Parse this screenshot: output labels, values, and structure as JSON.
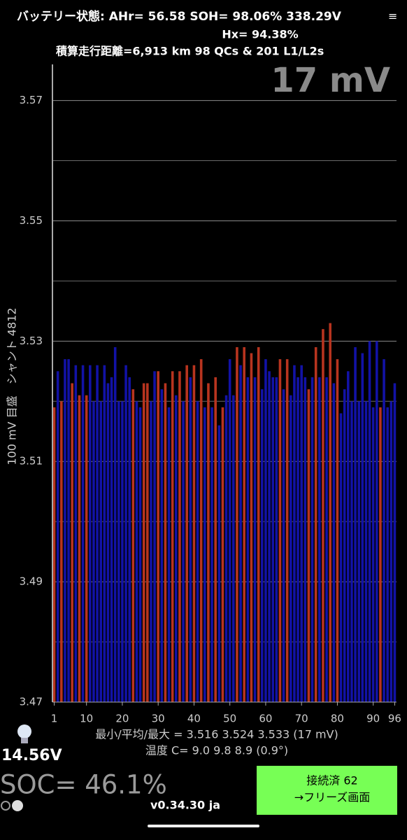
{
  "header": {
    "line1": "バッテリー状態:  AHr= 56.58  SOH= 98.06%   338.29V",
    "line2": "Hx= 94.38%",
    "line3": "積算走行距離=6,913 km  98 QCs & 201 L1/L2s"
  },
  "delta": "17 mV",
  "chart_data": {
    "type": "bar",
    "y_label": "100 mV 目盛　シャント 4812",
    "x": [
      1,
      2,
      3,
      4,
      5,
      6,
      7,
      8,
      9,
      10,
      11,
      12,
      13,
      14,
      15,
      16,
      17,
      18,
      19,
      20,
      21,
      22,
      23,
      24,
      25,
      26,
      27,
      28,
      29,
      30,
      31,
      32,
      33,
      34,
      35,
      36,
      37,
      38,
      39,
      40,
      41,
      42,
      43,
      44,
      45,
      46,
      47,
      48,
      49,
      50,
      51,
      52,
      53,
      54,
      55,
      56,
      57,
      58,
      59,
      60,
      61,
      62,
      63,
      64,
      65,
      66,
      67,
      68,
      69,
      70,
      71,
      72,
      73,
      74,
      75,
      76,
      77,
      78,
      79,
      80,
      81,
      82,
      83,
      84,
      85,
      86,
      87,
      88,
      89,
      90,
      91,
      92,
      93,
      94,
      95,
      96
    ],
    "values": [
      3.519,
      3.525,
      3.52,
      3.527,
      3.527,
      3.523,
      3.526,
      3.521,
      3.526,
      3.521,
      3.526,
      3.52,
      3.526,
      3.52,
      3.526,
      3.523,
      3.524,
      3.529,
      3.52,
      3.52,
      3.526,
      3.524,
      3.522,
      3.52,
      3.519,
      3.523,
      3.523,
      3.52,
      3.525,
      3.525,
      3.522,
      3.523,
      3.519,
      3.525,
      3.521,
      3.525,
      3.52,
      3.526,
      3.524,
      3.526,
      3.52,
      3.527,
      3.519,
      3.523,
      3.519,
      3.524,
      3.516,
      3.519,
      3.521,
      3.527,
      3.521,
      3.529,
      3.526,
      3.529,
      3.524,
      3.528,
      3.524,
      3.529,
      3.522,
      3.527,
      3.525,
      3.524,
      3.524,
      3.527,
      3.522,
      3.527,
      3.521,
      3.526,
      3.524,
      3.526,
      3.524,
      3.522,
      3.524,
      3.529,
      3.524,
      3.532,
      3.524,
      3.533,
      3.523,
      3.527,
      3.518,
      3.522,
      3.525,
      3.52,
      3.529,
      3.52,
      3.528,
      3.52,
      3.53,
      3.519,
      3.53,
      3.519,
      3.527,
      3.519,
      3.52,
      3.523
    ],
    "colors": [
      "#b8341f",
      "#1212a6",
      "#b8341f",
      "#1212a6",
      "#1212a6",
      "#b8341f",
      "#1212a6",
      "#b8341f",
      "#1212a6",
      "#b8341f",
      "#1212a6",
      "#1212a6",
      "#1212a6",
      "#1212a6",
      "#1212a6",
      "#1212a6",
      "#1212a6",
      "#1212a6",
      "#1212a6",
      "#1212a6",
      "#1212a6",
      "#1212a6",
      "#b8341f",
      "#1212a6",
      "#1212a6",
      "#b8341f",
      "#b8341f",
      "#1212a6",
      "#1212a6",
      "#b8341f",
      "#1212a6",
      "#b8341f",
      "#1212a6",
      "#b8341f",
      "#1212a6",
      "#b8341f",
      "#1212a6",
      "#b8341f",
      "#1212a6",
      "#b8341f",
      "#1212a6",
      "#b8341f",
      "#1212a6",
      "#b8341f",
      "#1212a6",
      "#b8341f",
      "#1212a6",
      "#b8341f",
      "#1212a6",
      "#1212a6",
      "#1212a6",
      "#b8341f",
      "#1212a6",
      "#b8341f",
      "#1212a6",
      "#b8341f",
      "#1212a6",
      "#b8341f",
      "#1212a6",
      "#1212a6",
      "#1212a6",
      "#1212a6",
      "#1212a6",
      "#b8341f",
      "#1212a6",
      "#b8341f",
      "#1212a6",
      "#1212a6",
      "#1212a6",
      "#1212a6",
      "#1212a6",
      "#b8341f",
      "#1212a6",
      "#b8341f",
      "#1212a6",
      "#b8341f",
      "#1212a6",
      "#b8341f",
      "#1212a6",
      "#b8341f",
      "#1212a6",
      "#1212a6",
      "#1212a6",
      "#1212a6",
      "#1212a6",
      "#1212a6",
      "#1212a6",
      "#1212a6",
      "#1212a6",
      "#1212a6",
      "#1212a6",
      "#b8341f",
      "#1212a6",
      "#1212a6",
      "#1212a6",
      "#1212a6"
    ],
    "xlim": [
      0.5,
      96.5
    ],
    "xticks": [
      1,
      10,
      20,
      30,
      40,
      50,
      60,
      70,
      80,
      90,
      96
    ],
    "ylim": [
      3.47,
      3.576
    ],
    "yticks": [
      3.47,
      3.49,
      3.51,
      3.53,
      3.55,
      3.57
    ],
    "minor_yticks": [
      3.48,
      3.5,
      3.52,
      3.54,
      3.56
    ],
    "grid": true
  },
  "stats": {
    "line1": "最小/平均/最大 = 3.516 3.524 3.533  (17 mV)",
    "line2": "温度 C= 9.0  9.8  8.9  (0.9°)"
  },
  "footer": {
    "voltage": "14.56V",
    "soc": "SOC= 46.1%",
    "version": "v0.34.30 ja",
    "button_line1": "接続済 62",
    "button_line2": "→フリーズ画面"
  }
}
